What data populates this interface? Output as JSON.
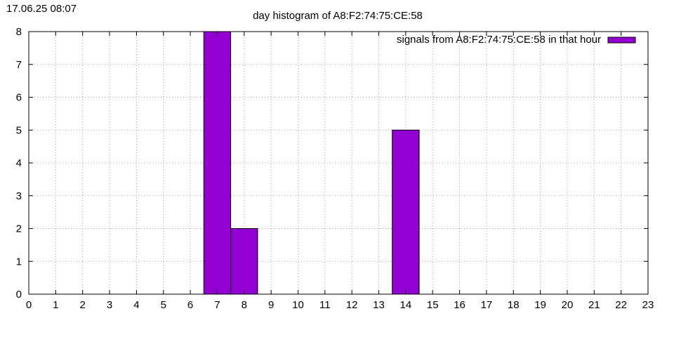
{
  "timestamp": "17.06.25 08:07",
  "chart_data": {
    "type": "bar",
    "title": "day histogram of A8:F2:74:75:CE:58",
    "xlabel": "",
    "ylabel": "",
    "xlim": [
      0,
      23
    ],
    "ylim": [
      0,
      8
    ],
    "x_ticks": [
      0,
      1,
      2,
      3,
      4,
      5,
      6,
      7,
      8,
      9,
      10,
      11,
      12,
      13,
      14,
      15,
      16,
      17,
      18,
      19,
      20,
      21,
      22,
      23
    ],
    "y_ticks": [
      0,
      1,
      2,
      3,
      4,
      5,
      6,
      7,
      8
    ],
    "grid": true,
    "legend_position": "top-right",
    "series": [
      {
        "name": "signals from A8:F2:74:75:CE:58 in that hour",
        "color": "#9400d3",
        "x": [
          7,
          8,
          14
        ],
        "values": [
          8,
          2,
          5
        ]
      }
    ]
  }
}
